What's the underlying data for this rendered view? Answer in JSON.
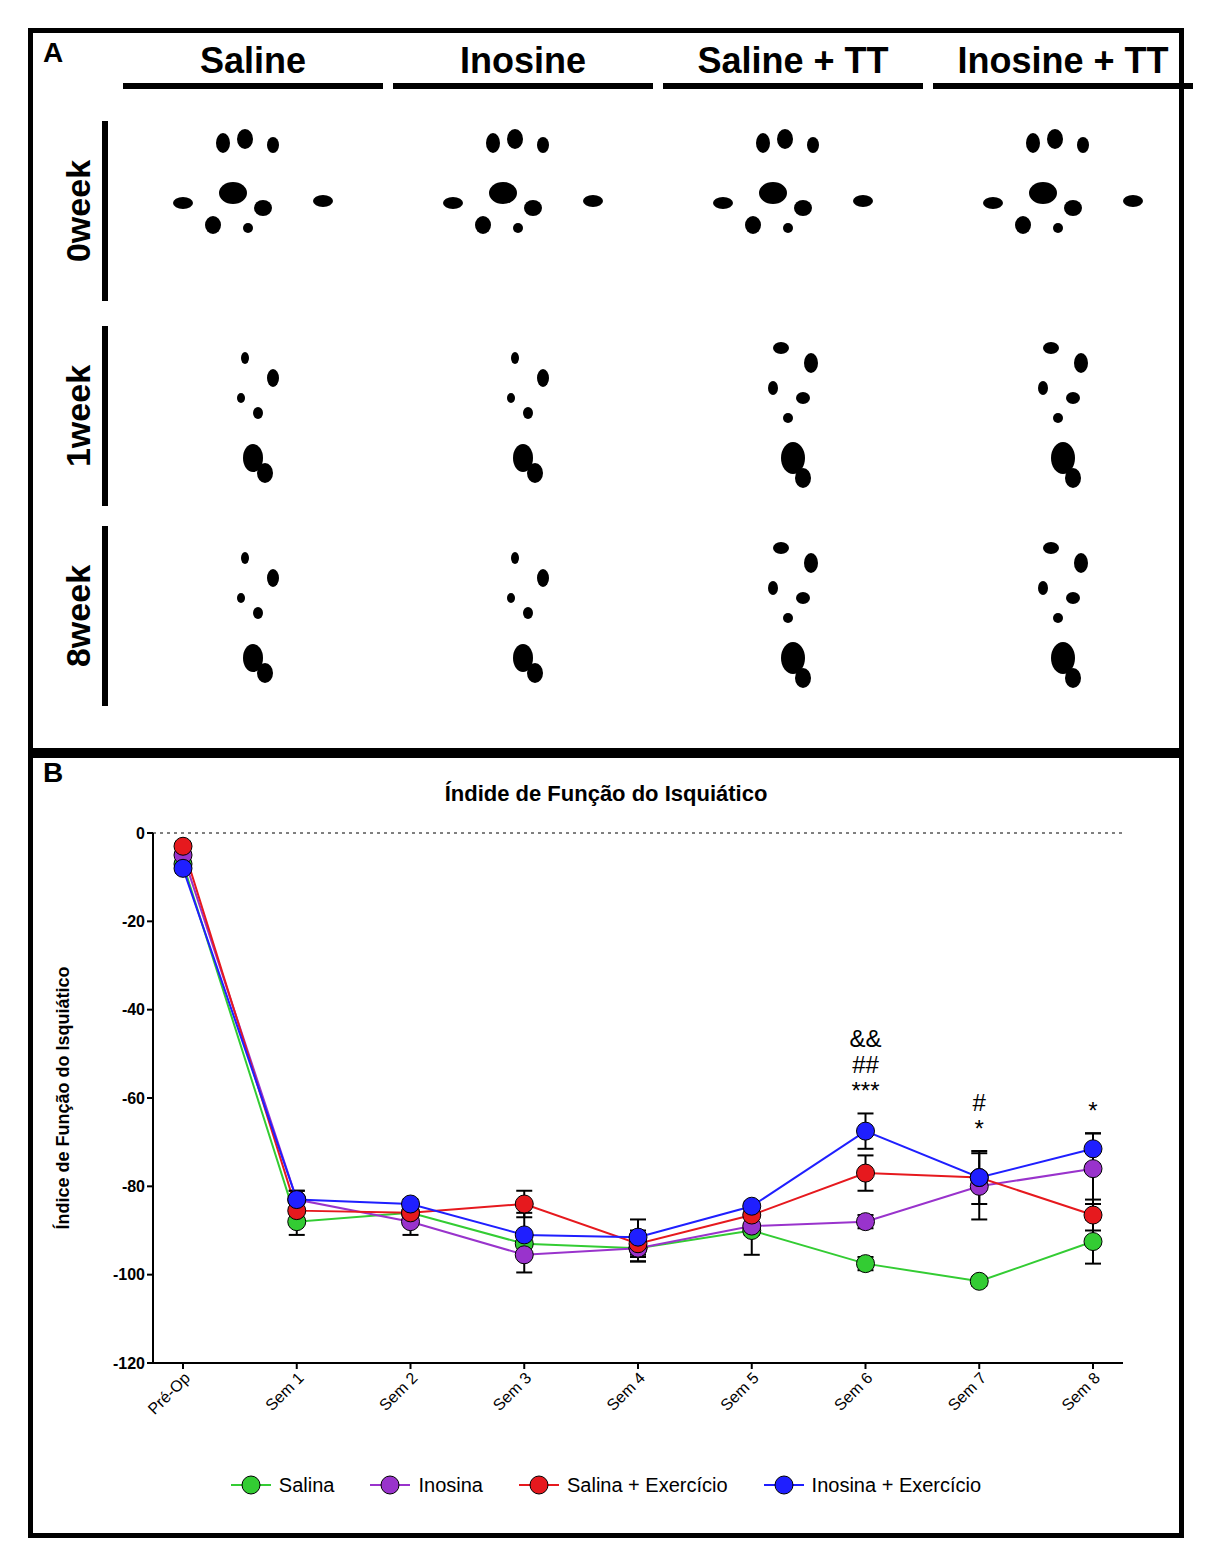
{
  "panel_a": {
    "letter": "A",
    "columns": [
      "Saline",
      "Inosine",
      "Saline + TT",
      "Inosine + TT"
    ],
    "rows": [
      "0week",
      "1week",
      "8week"
    ]
  },
  "chart_data": {
    "letter": "B",
    "type": "line",
    "title": "Índide de Função do Isquiático",
    "y_label": "Índice de Função do Isquiático",
    "categories": [
      "Pré-Op",
      "Sem 1",
      "Sem 2",
      "Sem 3",
      "Sem 4",
      "Sem 5",
      "Sem 6",
      "Sem 7",
      "Sem 8"
    ],
    "series": [
      {
        "name": "Salina",
        "color": "#33cc33",
        "values": [
          -7,
          -88,
          -86,
          -93,
          -94,
          -90,
          -97.5,
          -101.5,
          -92.5
        ],
        "errors": [
          0.5,
          3,
          1,
          2,
          3,
          5.5,
          1.5,
          1,
          5
        ]
      },
      {
        "name": "Inosina",
        "color": "#9933cc",
        "values": [
          -5,
          -83,
          -88,
          -95.5,
          -94,
          -89,
          -88,
          -80,
          -76
        ],
        "errors": [
          1,
          2,
          3,
          4,
          3,
          2,
          1.5,
          7.5,
          8
        ]
      },
      {
        "name": "Salina + Exercício",
        "color": "#e6191e",
        "values": [
          -3,
          -85.5,
          -86,
          -84,
          -93,
          -86.5,
          -77,
          -78,
          -86.5
        ],
        "errors": [
          1,
          3,
          2,
          3,
          3,
          2,
          4,
          1,
          3.5
        ]
      },
      {
        "name": "Inosina + Exercício",
        "color": "#1f1fff",
        "values": [
          -8,
          -83,
          -84,
          -91,
          -91.5,
          -84.5,
          -67.5,
          -78,
          -71.5
        ],
        "errors": [
          1,
          2,
          1,
          5,
          4,
          1,
          4,
          6,
          3.5
        ]
      }
    ],
    "ylim": [
      -120,
      0
    ],
    "yticks": [
      -120,
      -100,
      -80,
      -60,
      -40,
      -20,
      0
    ],
    "marker": "circle",
    "legend": "bottom",
    "annotations": [
      {
        "x": "Sem 6",
        "lines": [
          "&&",
          "##",
          "***"
        ]
      },
      {
        "x": "Sem 7",
        "lines": [
          "#",
          "*"
        ]
      },
      {
        "x": "Sem 8",
        "lines": [
          "*"
        ]
      }
    ]
  }
}
